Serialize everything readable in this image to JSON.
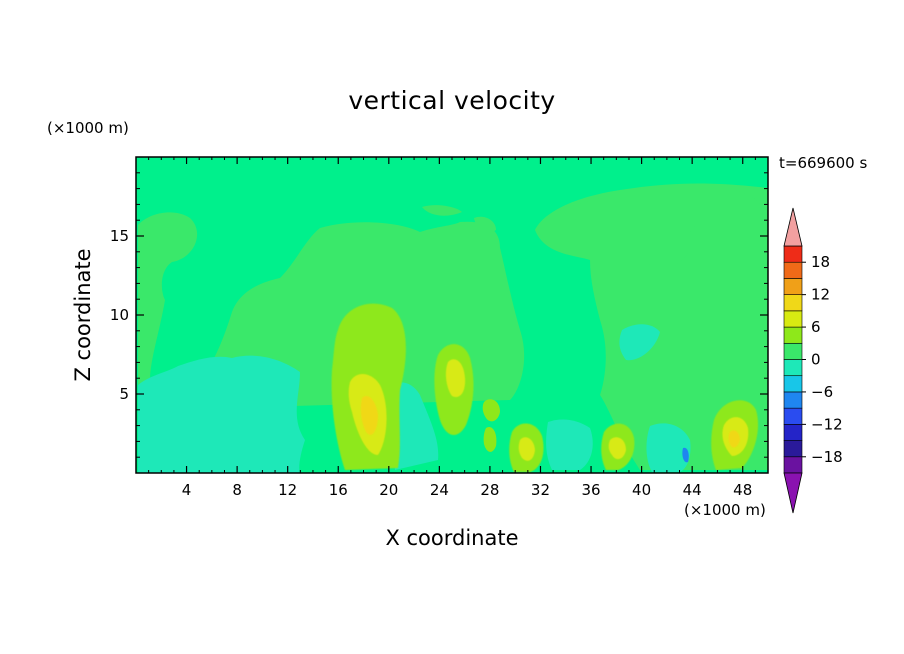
{
  "chart_data": {
    "type": "heatmap",
    "title": "vertical velocity",
    "xlabel": "X coordinate",
    "ylabel": "Z coordinate",
    "x_unit": "(×1000 m)",
    "y_unit": "(×1000 m)",
    "time_label": "t=669600 s",
    "xlim": [
      0,
      50
    ],
    "ylim": [
      0,
      20
    ],
    "x_ticks": [
      4,
      8,
      12,
      16,
      20,
      24,
      28,
      32,
      36,
      40,
      44,
      48
    ],
    "x_tick_labels": [
      "4",
      "8",
      "12",
      "16",
      "20",
      "24",
      "28",
      "32",
      "36",
      "40",
      "44",
      "48"
    ],
    "y_ticks": [
      5,
      10,
      15
    ],
    "y_tick_labels": [
      "5",
      "10",
      "15"
    ],
    "grid": false,
    "colorbar": {
      "levels": [
        -21,
        -18,
        -15,
        -12,
        -9,
        -6,
        -3,
        0,
        3,
        6,
        9,
        12,
        15,
        18,
        21
      ],
      "colors": [
        "#6a12a0",
        "#2a1a9a",
        "#2424c8",
        "#2a4cf0",
        "#1f86f0",
        "#18c6e8",
        "#1ee8b8",
        "#3ae86a",
        "#8ee81a",
        "#d8ea12",
        "#f0d818",
        "#f0a018",
        "#f06a18",
        "#ee2c18",
        "#e80f0f",
        "#f2a0a0"
      ],
      "under_color": "#8a12b0",
      "over_color": "#f2a0a0",
      "labels": [
        "18",
        "12",
        "6",
        "0",
        "−6",
        "−12",
        "−18"
      ],
      "label_values": [
        18,
        12,
        6,
        0,
        -6,
        -12,
        -18
      ]
    },
    "background_level_color": "#00f08c",
    "regions": [
      {
        "name": "upper-green-band",
        "color": "#3ae86a",
        "x": [
          1,
          49
        ],
        "z": [
          5,
          18
        ]
      },
      {
        "name": "lower-cyan-band",
        "color": "#1ee8b8",
        "x": [
          1,
          21
        ],
        "z": [
          0,
          8
        ]
      },
      {
        "name": "updraft-x18",
        "color": "#8ee81a",
        "x_center": 18.5,
        "z_center": 7.5,
        "peak": 9
      },
      {
        "name": "updraft-x25",
        "color": "#d8ea12",
        "x_center": 25.3,
        "z_center": 6,
        "peak": 6
      },
      {
        "name": "updraft-x30",
        "color": "#d8ea12",
        "x_center": 30.5,
        "z_center": 2,
        "peak": 6
      },
      {
        "name": "updraft-x38",
        "color": "#d8ea12",
        "x_center": 38.5,
        "z_center": 2,
        "peak": 6
      },
      {
        "name": "updraft-x47",
        "color": "#f0d818",
        "x_center": 47,
        "z_center": 3,
        "peak": 9
      }
    ]
  }
}
